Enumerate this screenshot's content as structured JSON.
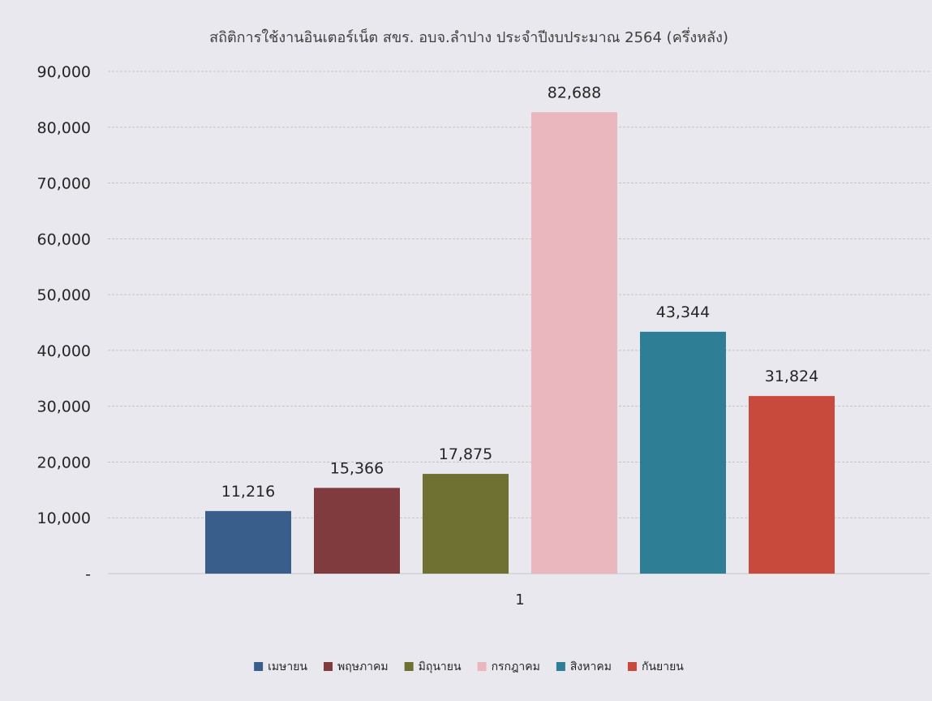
{
  "chart_data": {
    "type": "bar",
    "title": "สถิติการใช้งานอินเตอร์เน็ต สขร. อบจ.ลำปาง ประจำปีงบประมาณ 2564 (ครึ่งหลัง)",
    "xlabel": "",
    "ylabel": "",
    "categories": [
      "1"
    ],
    "ylim": [
      0,
      90000
    ],
    "ytick_step": 10000,
    "ytick_labels": [
      "-",
      "10,000",
      "20,000",
      "30,000",
      "40,000",
      "50,000",
      "60,000",
      "70,000",
      "80,000",
      "90,000"
    ],
    "grid": true,
    "legend_position": "bottom",
    "series": [
      {
        "name": "เมษายน",
        "values": [
          11216
        ],
        "label": "11,216",
        "color": "#3a5e8c"
      },
      {
        "name": "พฤษภาคม",
        "values": [
          15366
        ],
        "label": "15,366",
        "color": "#7f3b3e"
      },
      {
        "name": "มิถุนายน",
        "values": [
          17875
        ],
        "label": "17,875",
        "color": "#6e7131"
      },
      {
        "name": "กรกฎาคม",
        "values": [
          82688
        ],
        "label": "82,688",
        "color": "#eab7bf"
      },
      {
        "name": "สิงหาคม",
        "values": [
          43344
        ],
        "label": "43,344",
        "color": "#2e7f95"
      },
      {
        "name": "กันยายน",
        "values": [
          31824
        ],
        "label": "31,824",
        "color": "#c84a3d"
      }
    ]
  }
}
